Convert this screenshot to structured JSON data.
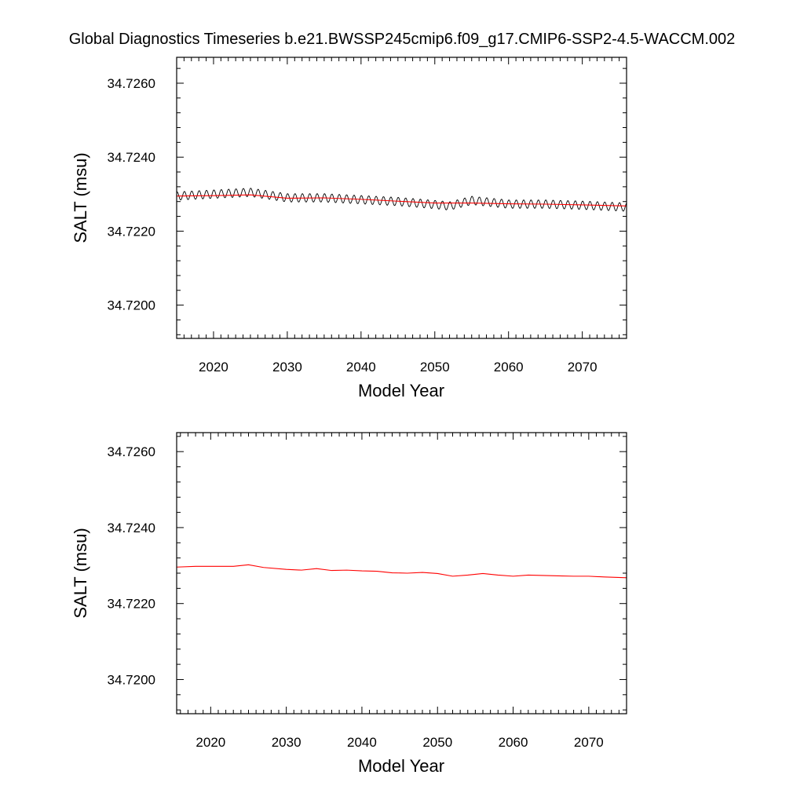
{
  "figure": {
    "title": "Global Diagnostics Timeseries b.e21.BWSSP245cmip6.f09_g17.CMIP6-SSP2-4.5-WACCM.002"
  },
  "chart_data": [
    {
      "type": "line",
      "xlabel": "Model Year",
      "ylabel": "SALT (msu)",
      "xlim": [
        2015,
        2076
      ],
      "ylim": [
        34.7191,
        34.7267
      ],
      "x_ticks": [
        "2020",
        "2030",
        "2040",
        "2050",
        "2060",
        "2070"
      ],
      "y_ticks": [
        "34.7200",
        "34.7220",
        "34.7240",
        "34.7260"
      ],
      "grid": false,
      "series": [
        {
          "kind": "monthly",
          "color": "#000000",
          "seasonal_amplitude": 0.00012,
          "x": [
            2015,
            2020,
            2025,
            2030,
            2035,
            2040,
            2045,
            2050,
            2052,
            2055,
            2060,
            2065,
            2070,
            2076
          ],
          "values": [
            34.72295,
            34.723,
            34.72305,
            34.7229,
            34.7229,
            34.72285,
            34.7228,
            34.72272,
            34.72268,
            34.72283,
            34.72273,
            34.72273,
            34.7227,
            34.72265
          ]
        },
        {
          "kind": "annual",
          "color": "#ff0000",
          "x": [
            2015,
            2020,
            2025,
            2030,
            2035,
            2040,
            2045,
            2050,
            2055,
            2060,
            2065,
            2070,
            2076
          ],
          "values": [
            34.72295,
            34.72296,
            34.72298,
            34.72289,
            34.7229,
            34.72286,
            34.72281,
            34.72276,
            34.72276,
            34.72274,
            34.72273,
            34.72271,
            34.72268
          ]
        }
      ]
    },
    {
      "type": "line",
      "xlabel": "Model Year",
      "ylabel": "SALT (msu)",
      "xlim": [
        2015.5,
        2075
      ],
      "ylim": [
        34.7191,
        34.7265
      ],
      "x_ticks": [
        "2020",
        "2030",
        "2040",
        "2050",
        "2060",
        "2070"
      ],
      "y_ticks": [
        "34.7200",
        "34.7220",
        "34.7240",
        "34.7260"
      ],
      "grid": false,
      "series": [
        {
          "kind": "annual",
          "color": "#ff0000",
          "x": [
            2015.5,
            2018,
            2020,
            2023,
            2025,
            2027,
            2030,
            2032,
            2034,
            2036,
            2038,
            2040,
            2042,
            2044,
            2046,
            2048,
            2050,
            2052,
            2054,
            2056,
            2058,
            2060,
            2062,
            2064,
            2066,
            2068,
            2070,
            2072,
            2075
          ],
          "values": [
            34.72296,
            34.72298,
            34.72298,
            34.72298,
            34.72302,
            34.72295,
            34.7229,
            34.72288,
            34.72292,
            34.72287,
            34.72288,
            34.72286,
            34.72285,
            34.72281,
            34.7228,
            34.72282,
            34.72279,
            34.72272,
            34.72275,
            34.72279,
            34.72275,
            34.72272,
            34.72275,
            34.72274,
            34.72273,
            34.72272,
            34.72272,
            34.7227,
            34.72268
          ]
        }
      ]
    }
  ]
}
